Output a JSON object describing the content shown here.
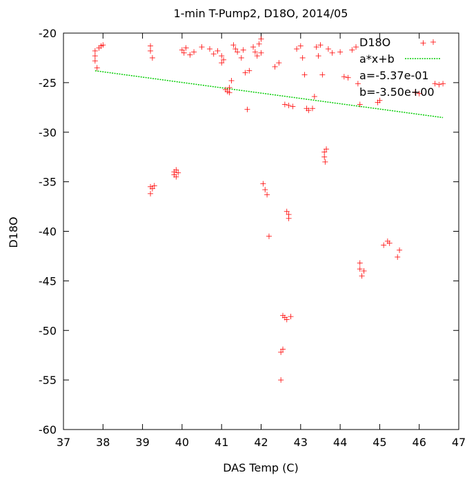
{
  "chart_data": {
    "type": "scatter",
    "title": "1-min T-Pump2, D18O, 2014/05",
    "xlabel": "DAS Temp (C)",
    "ylabel": "D18O",
    "xlim": [
      37,
      47
    ],
    "ylim": [
      -60,
      -20
    ],
    "xticks": [
      37,
      38,
      39,
      40,
      41,
      42,
      43,
      44,
      45,
      46,
      47
    ],
    "yticks": [
      -60,
      -55,
      -50,
      -45,
      -40,
      -35,
      -30,
      -25,
      -20
    ],
    "grid": false,
    "legend_position": "top-right",
    "colors": {
      "points": "#ff0000",
      "fit": "#00cc00"
    },
    "series": [
      {
        "name": "D18O",
        "style": "plus-markers",
        "points": [
          [
            37.8,
            -21.8
          ],
          [
            37.8,
            -22.3
          ],
          [
            37.8,
            -22.8
          ],
          [
            37.85,
            -23.5
          ],
          [
            37.9,
            -21.5
          ],
          [
            37.95,
            -21.3
          ],
          [
            38.0,
            -21.2
          ],
          [
            39.2,
            -21.3
          ],
          [
            39.2,
            -21.8
          ],
          [
            39.25,
            -22.5
          ],
          [
            39.2,
            -35.5
          ],
          [
            39.25,
            -35.7
          ],
          [
            39.3,
            -35.4
          ],
          [
            39.2,
            -36.2
          ],
          [
            39.8,
            -34.0
          ],
          [
            39.85,
            -33.8
          ],
          [
            39.8,
            -34.3
          ],
          [
            39.9,
            -34.1
          ],
          [
            39.85,
            -34.5
          ],
          [
            40.0,
            -21.7
          ],
          [
            40.05,
            -22.0
          ],
          [
            40.1,
            -21.5
          ],
          [
            40.2,
            -22.2
          ],
          [
            40.3,
            -21.9
          ],
          [
            40.5,
            -21.4
          ],
          [
            40.7,
            -21.6
          ],
          [
            40.8,
            -22.1
          ],
          [
            40.9,
            -21.8
          ],
          [
            41.0,
            -22.3
          ],
          [
            41.0,
            -23.0
          ],
          [
            41.05,
            -22.7
          ],
          [
            41.1,
            -25.7
          ],
          [
            41.15,
            -25.9
          ],
          [
            41.2,
            -25.5
          ],
          [
            41.2,
            -26.0
          ],
          [
            41.25,
            -24.8
          ],
          [
            41.3,
            -21.2
          ],
          [
            41.35,
            -21.6
          ],
          [
            41.4,
            -21.9
          ],
          [
            41.5,
            -22.5
          ],
          [
            41.55,
            -21.7
          ],
          [
            41.6,
            -24.0
          ],
          [
            41.65,
            -27.7
          ],
          [
            41.7,
            -23.8
          ],
          [
            41.8,
            -21.4
          ],
          [
            41.85,
            -21.9
          ],
          [
            41.9,
            -22.3
          ],
          [
            41.95,
            -21.1
          ],
          [
            42.0,
            -20.6
          ],
          [
            42.0,
            -22.0
          ],
          [
            42.05,
            -35.2
          ],
          [
            42.1,
            -35.8
          ],
          [
            42.15,
            -36.3
          ],
          [
            42.2,
            -40.5
          ],
          [
            42.35,
            -23.4
          ],
          [
            42.45,
            -23.0
          ],
          [
            42.5,
            -52.2
          ],
          [
            42.5,
            -55.0
          ],
          [
            42.55,
            -51.9
          ],
          [
            42.55,
            -48.5
          ],
          [
            42.6,
            -48.7
          ],
          [
            42.65,
            -38.0
          ],
          [
            42.65,
            -48.9
          ],
          [
            42.7,
            -38.3
          ],
          [
            42.7,
            -38.7
          ],
          [
            42.6,
            -27.2
          ],
          [
            42.7,
            -27.3
          ],
          [
            42.75,
            -48.6
          ],
          [
            42.8,
            -27.4
          ],
          [
            42.9,
            -21.6
          ],
          [
            43.0,
            -21.3
          ],
          [
            43.05,
            -22.5
          ],
          [
            43.1,
            -24.2
          ],
          [
            43.15,
            -27.6
          ],
          [
            43.2,
            -27.8
          ],
          [
            43.3,
            -27.6
          ],
          [
            43.35,
            -26.4
          ],
          [
            43.4,
            -21.4
          ],
          [
            43.45,
            -22.3
          ],
          [
            43.5,
            -21.2
          ],
          [
            43.55,
            -24.2
          ],
          [
            43.6,
            -32.0
          ],
          [
            43.6,
            -32.5
          ],
          [
            43.62,
            -33.0
          ],
          [
            43.65,
            -31.7
          ],
          [
            43.7,
            -21.6
          ],
          [
            43.8,
            -22.0
          ],
          [
            44.0,
            -21.9
          ],
          [
            44.1,
            -24.4
          ],
          [
            44.2,
            -24.5
          ],
          [
            44.3,
            -21.7
          ],
          [
            44.4,
            -21.4
          ],
          [
            44.45,
            -25.1
          ],
          [
            44.5,
            -27.2
          ],
          [
            44.5,
            -43.2
          ],
          [
            44.5,
            -43.8
          ],
          [
            44.55,
            -44.5
          ],
          [
            44.6,
            -44.0
          ],
          [
            44.95,
            -27.0
          ],
          [
            45.0,
            -26.8
          ],
          [
            45.1,
            -41.4
          ],
          [
            45.2,
            -41.0
          ],
          [
            45.25,
            -41.2
          ],
          [
            45.45,
            -42.6
          ],
          [
            45.5,
            -41.9
          ],
          [
            45.9,
            -26.0
          ],
          [
            46.0,
            -26.1
          ],
          [
            46.1,
            -21.0
          ],
          [
            46.4,
            -25.1
          ],
          [
            46.5,
            -25.2
          ],
          [
            46.6,
            -25.1
          ]
        ]
      },
      {
        "name": "a*x+b",
        "style": "dotted-line",
        "slope": -0.537,
        "intercept": -3.5
      }
    ],
    "annotations": [
      "a=-5.37e-01",
      "b=-3.50e+00"
    ]
  }
}
